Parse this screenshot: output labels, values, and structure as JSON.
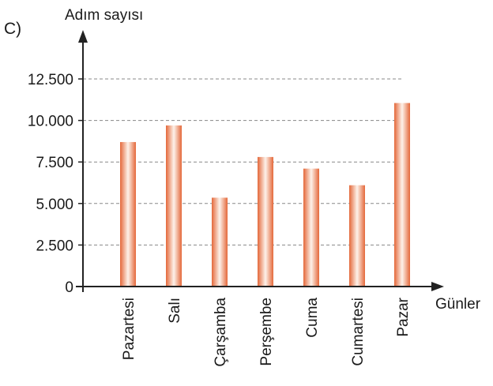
{
  "chart_data": {
    "type": "bar",
    "panel_label": "C)",
    "ylabel": "Adım sayısı",
    "xlabel": "Günler",
    "categories": [
      "Pazartesi",
      "Salı",
      "Çarşamba",
      "Perşembe",
      "Cuma",
      "Cumartesi",
      "Pazar"
    ],
    "values": [
      8700,
      9700,
      5350,
      7800,
      7100,
      6100,
      11050
    ],
    "yticks": [
      0,
      2500,
      5000,
      7500,
      10000,
      12500
    ],
    "ytick_labels": [
      "0",
      "2.500",
      "5.000",
      "7.500",
      "10.000",
      "12.500"
    ],
    "ylim": [
      0,
      12500
    ],
    "grid": "horizontal dashed",
    "colors": {
      "bar_edge": "#e4683a",
      "bar_center": "#fdf2ea",
      "grid": "#888888",
      "axis": "#222222"
    }
  }
}
